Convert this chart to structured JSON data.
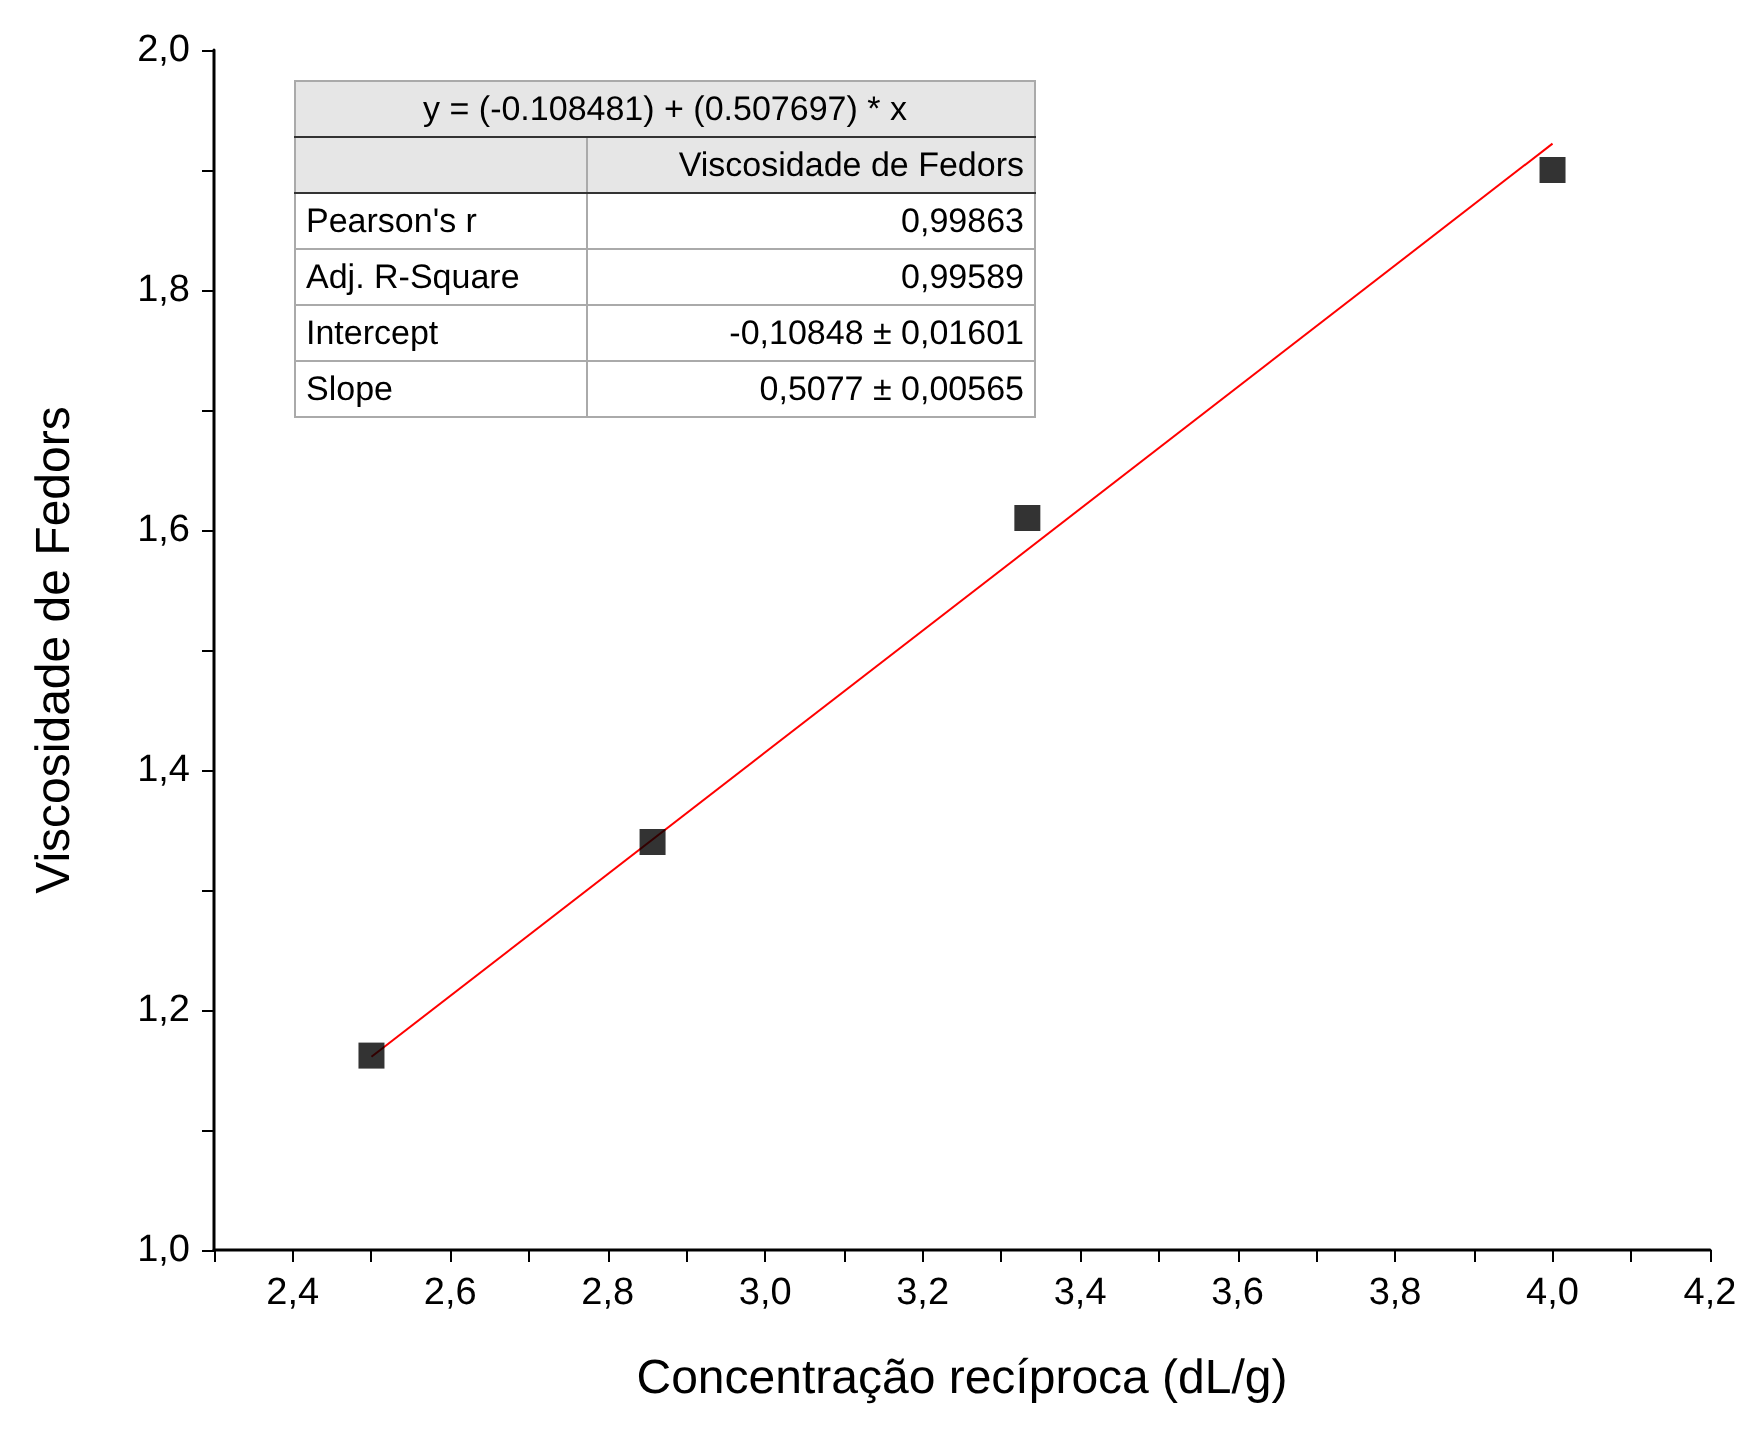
{
  "chart_data": {
    "type": "scatter",
    "xlabel": "Concentração recíproca (dL/g)",
    "ylabel": "Viscosidade de Fedors",
    "x": [
      2.5,
      2.857,
      3.333,
      4.0
    ],
    "series": [
      {
        "color": "#000000",
        "marker": "square",
        "values": [
          1.162,
          1.34,
          1.61,
          1.9
        ]
      },
      {
        "type": "line",
        "color": "#ff0000",
        "marker": "none",
        "line_style": "solid",
        "x": [
          2.5,
          4.0
        ],
        "values": [
          1.161,
          1.922
        ]
      }
    ],
    "xlim": [
      2.3,
      4.2
    ],
    "xticks": [
      {
        "value": 2.3,
        "label": null
      },
      {
        "value": 2.4,
        "label": "2,4"
      },
      {
        "value": 2.5,
        "label": null
      },
      {
        "value": 2.6,
        "label": "2,6"
      },
      {
        "value": 2.7,
        "label": null
      },
      {
        "value": 2.8,
        "label": "2,8"
      },
      {
        "value": 2.9,
        "label": null
      },
      {
        "value": 3.0,
        "label": "3,0"
      },
      {
        "value": 3.1,
        "label": null
      },
      {
        "value": 3.2,
        "label": "3,2"
      },
      {
        "value": 3.3,
        "label": null
      },
      {
        "value": 3.4,
        "label": "3,4"
      },
      {
        "value": 3.5,
        "label": null
      },
      {
        "value": 3.6,
        "label": "3,6"
      },
      {
        "value": 3.7,
        "label": null
      },
      {
        "value": 3.8,
        "label": "3,8"
      },
      {
        "value": 3.9,
        "label": null
      },
      {
        "value": 4.0,
        "label": "4,0"
      },
      {
        "value": 4.1,
        "label": null
      },
      {
        "value": 4.2,
        "label": "4,2"
      }
    ],
    "ylim": [
      1.0,
      2.0
    ],
    "yticks": [
      {
        "value": 1.0,
        "label": "1,0"
      },
      {
        "value": 1.1,
        "label": null
      },
      {
        "value": 1.2,
        "label": "1,2"
      },
      {
        "value": 1.3,
        "label": null
      },
      {
        "value": 1.4,
        "label": "1,4"
      },
      {
        "value": 1.5,
        "label": null
      },
      {
        "value": 1.6,
        "label": "1,6"
      },
      {
        "value": 1.7,
        "label": null
      },
      {
        "value": 1.8,
        "label": "1,8"
      },
      {
        "value": 1.9,
        "label": null
      },
      {
        "value": 2.0,
        "label": "2,0"
      }
    ],
    "grid": false,
    "annotations": [
      "y = (-0.108481) + (0.507697) * x",
      "Viscosidade de Fedors",
      "Pearson's r",
      "0,99863",
      "Adj. R-Square",
      "0,99589",
      "Intercept",
      "-0,10848 ± 0,01601",
      "Slope",
      "0,5077 ± 0,00565"
    ]
  }
}
